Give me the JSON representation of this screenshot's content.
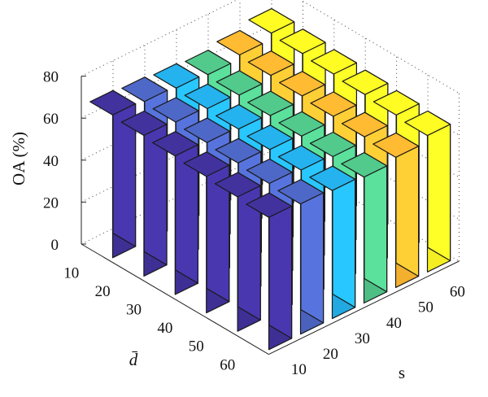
{
  "chart_data": {
    "type": "bar3d",
    "zlabel": "OA (%)",
    "xlabel": "d̄",
    "ylabel": "s",
    "d_ticks": [
      "10",
      "20",
      "30",
      "40",
      "50",
      "60"
    ],
    "s_ticks": [
      "10",
      "20",
      "30",
      "40",
      "50",
      "60"
    ],
    "z_ticks": [
      "0",
      "20",
      "40",
      "60",
      "80"
    ],
    "zlim": [
      0,
      80
    ],
    "grid": true,
    "series_colors": [
      "#3e2f95",
      "#4a62bc",
      "#22a9e1",
      "#4dbf84",
      "#f2b02e",
      "#f4ee22"
    ],
    "values": [
      [
        68,
        67,
        66,
        65,
        67,
        70
      ],
      [
        67,
        66,
        65,
        64,
        66,
        69
      ],
      [
        66,
        65,
        64,
        63,
        65,
        68
      ],
      [
        65,
        64,
        63,
        62,
        64,
        67
      ],
      [
        64,
        63,
        62,
        61,
        63,
        66
      ],
      [
        63,
        62,
        61,
        60,
        62,
        65
      ]
    ]
  }
}
